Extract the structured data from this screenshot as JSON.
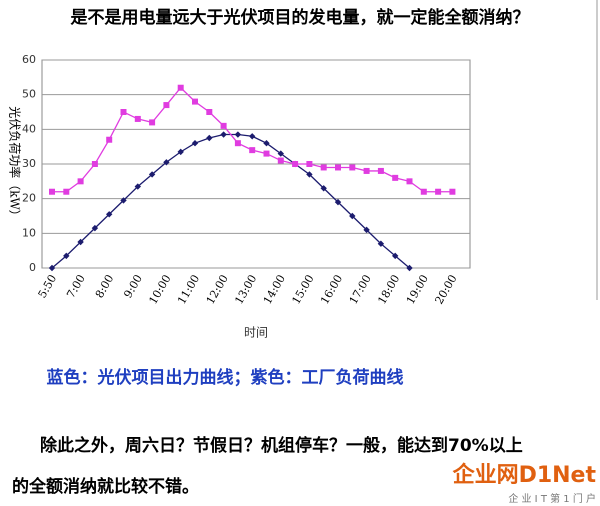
{
  "header": {
    "title": "是不是用电量远大于光伏项目的发电量，就一定能全额消纳？"
  },
  "chart_data": {
    "type": "line",
    "y_label": "光伏负荷功率（kW）",
    "x_label": "时间",
    "categories": [
      "5:50",
      null,
      "7:00",
      null,
      "8:00",
      null,
      "9:00",
      null,
      "10:00",
      null,
      "11:00",
      null,
      "12:00",
      null,
      "13:00",
      null,
      "14:00",
      null,
      "15:00",
      null,
      "16:00",
      null,
      "17:00",
      null,
      "18:00",
      null,
      "19:00",
      null,
      "20:00"
    ],
    "series": [
      {
        "color": "#1c1c6e",
        "marker": "diamond",
        "values": [
          0,
          3.5,
          7.5,
          11.5,
          15.5,
          19.5,
          23.5,
          27,
          30.5,
          33.5,
          36,
          37.5,
          38.5,
          38.5,
          38,
          36,
          33,
          30,
          27,
          23,
          19,
          15,
          11,
          7,
          3.5,
          0,
          null,
          null,
          null
        ]
      },
      {
        "color": "#e03ce0",
        "marker": "square",
        "values": [
          22,
          22,
          25,
          30,
          37,
          45,
          43,
          42,
          47,
          52,
          48,
          45,
          41,
          36,
          34,
          33,
          31,
          30,
          30,
          29,
          29,
          29,
          28,
          28,
          26,
          25,
          22,
          22,
          22
        ]
      }
    ],
    "ylim": [
      0,
      60
    ],
    "yticks": [
      0,
      10,
      20,
      30,
      40,
      50,
      60
    ],
    "grid": true
  },
  "caption": "蓝色：光伏项目出力曲线；紫色：工厂负荷曲线",
  "body": [
    "除此之外，周六日？节假日？机组停车？一般，能达到70%以上",
    "的全额消纳就比较不错。"
  ],
  "watermark": {
    "brand": "企业网D1Net",
    "slogan": "企 业 I T 第 1 门 户"
  }
}
